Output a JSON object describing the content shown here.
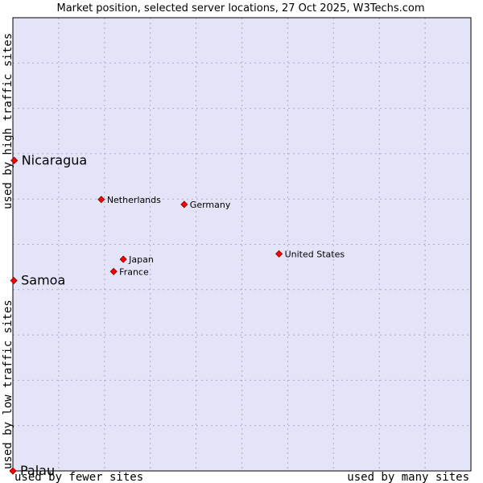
{
  "chart_data": {
    "type": "scatter",
    "title": "Market position, selected server locations, 27 Oct 2025, W3Techs.com",
    "xlabel_left": "used by fewer sites",
    "xlabel_right": "used by many sites",
    "ylabel_bottom": "used by low traffic sites",
    "ylabel_top": "used by high traffic sites",
    "grid": true,
    "xlim": [
      0,
      10
    ],
    "ylim": [
      0,
      10
    ],
    "colors": {
      "plot_bg": "#e4e4f8",
      "grid": "#aaaacc",
      "marker": "#ff0000",
      "marker_edge": "#880000",
      "frame": "#000000"
    },
    "points": [
      {
        "name": "Nicaragua",
        "x": 0.03,
        "y": 6.85,
        "emphasis": true
      },
      {
        "name": "Netherlands",
        "x": 1.93,
        "y": 5.99,
        "emphasis": false
      },
      {
        "name": "Germany",
        "x": 3.74,
        "y": 5.88,
        "emphasis": false
      },
      {
        "name": "United States",
        "x": 5.81,
        "y": 4.79,
        "emphasis": false
      },
      {
        "name": "Japan",
        "x": 2.41,
        "y": 4.67,
        "emphasis": false
      },
      {
        "name": "France",
        "x": 2.2,
        "y": 4.4,
        "emphasis": false
      },
      {
        "name": "Samoa",
        "x": 0.02,
        "y": 4.2,
        "emphasis": true
      },
      {
        "name": "Palau",
        "x": 0.0,
        "y": 0.0,
        "emphasis": true
      }
    ]
  }
}
